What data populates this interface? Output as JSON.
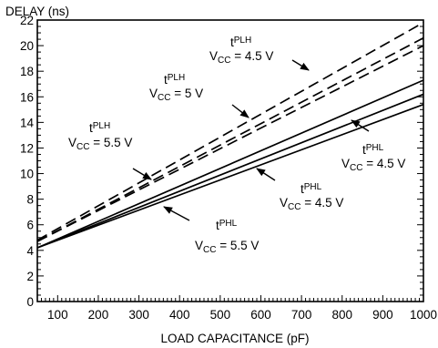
{
  "chart_data": {
    "type": "line",
    "ylabel": "DELAY (ns)",
    "xlabel": "LOAD CAPACITANCE (pF)",
    "xlim": [
      50,
      1000
    ],
    "ylim": [
      0,
      22
    ],
    "x_ticks": [
      100,
      200,
      300,
      400,
      500,
      600,
      700,
      800,
      900,
      1000
    ],
    "y_ticks": [
      0,
      2,
      4,
      6,
      8,
      10,
      12,
      14,
      16,
      18,
      20,
      22
    ],
    "x_tick_labels": [
      "100",
      "200",
      "300",
      "400",
      "500",
      "600",
      "700",
      "800",
      "900",
      "1000"
    ],
    "y_tick_labels": [
      "0",
      "2",
      "4",
      "6",
      "8",
      "10",
      "12",
      "14",
      "16",
      "18",
      "20",
      "22"
    ],
    "grid": false,
    "series": [
      {
        "style": "dashed",
        "x": [
          50,
          1000
        ],
        "y": [
          4.8,
          21.8
        ]
      },
      {
        "style": "dashed",
        "x": [
          50,
          1000
        ],
        "y": [
          4.7,
          20.6
        ]
      },
      {
        "style": "dashed",
        "x": [
          50,
          1000
        ],
        "y": [
          4.7,
          20.0
        ]
      },
      {
        "style": "solid",
        "x": [
          50,
          1000
        ],
        "y": [
          4.2,
          17.3
        ]
      },
      {
        "style": "solid",
        "x": [
          50,
          1000
        ],
        "y": [
          4.2,
          16.2
        ]
      },
      {
        "style": "solid",
        "x": [
          50,
          1000
        ],
        "y": [
          4.2,
          15.4
        ]
      }
    ],
    "annotations": [
      {
        "t_main": "t",
        "t_sub": "PLH",
        "v_main": "V",
        "v_sub": "CC",
        "v_rest": " = 4.5 V"
      },
      {
        "t_main": "t",
        "t_sub": "PLH",
        "v_main": "V",
        "v_sub": "CC",
        "v_rest": " = 5 V"
      },
      {
        "t_main": "t",
        "t_sub": "PLH",
        "v_main": "V",
        "v_sub": "CC",
        "v_rest": " = 5.5 V"
      },
      {
        "t_main": "t",
        "t_sub": "PHL",
        "v_main": "V",
        "v_sub": "CC",
        "v_rest": " = 4.5 V"
      },
      {
        "t_main": "t",
        "t_sub": "PHL",
        "v_main": "V",
        "v_sub": "CC",
        "v_rest": " = 4.5 V"
      },
      {
        "t_main": "t",
        "t_sub": "PHL",
        "v_main": "V",
        "v_sub": "CC",
        "v_rest": " = 5.5 V"
      }
    ]
  }
}
